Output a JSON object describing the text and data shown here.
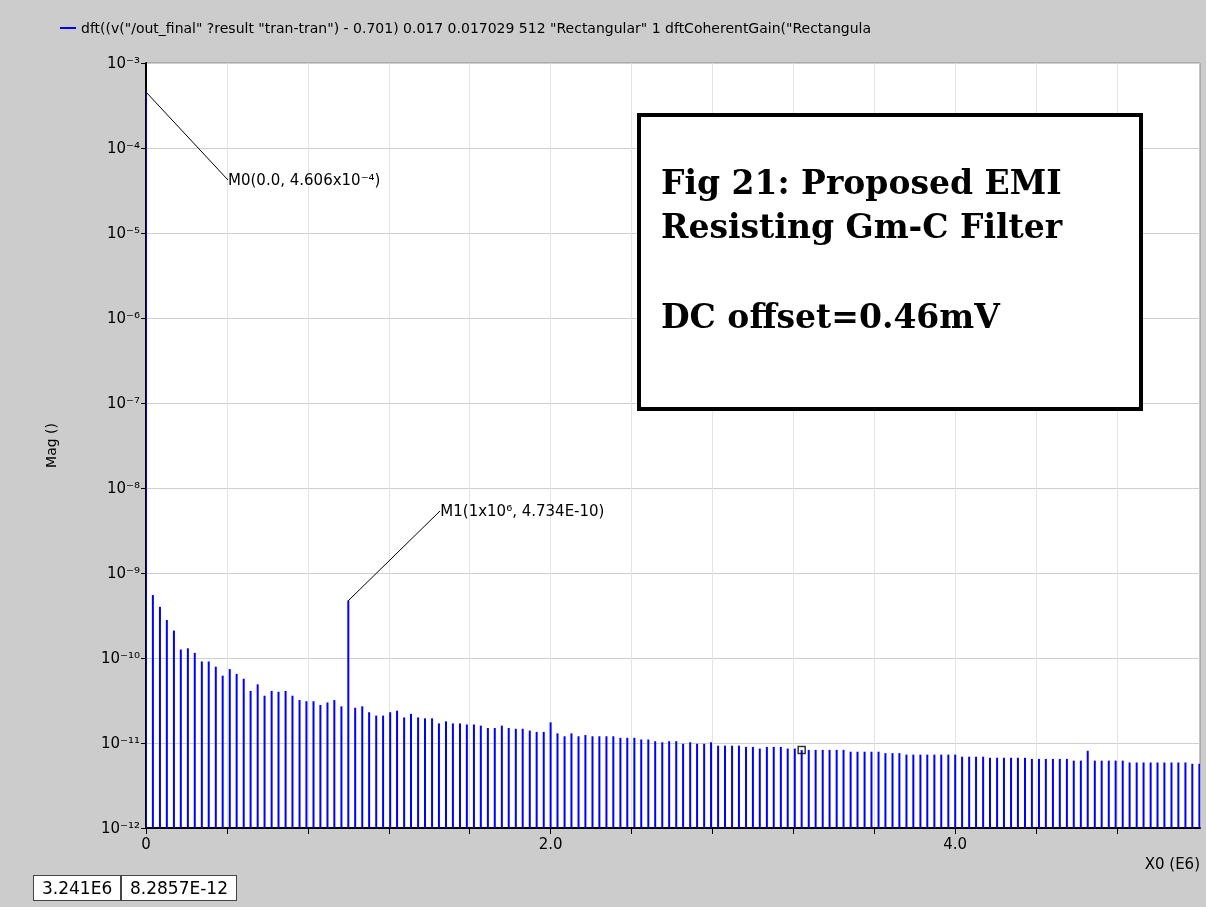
{
  "chart_data": {
    "type": "bar",
    "xlabel": "X0 (E6)",
    "ylabel": "Mag ()",
    "x": [
      0,
      0.034,
      0.069,
      0.103,
      0.138,
      0.172,
      0.207,
      0.241,
      0.276,
      0.31,
      0.345,
      0.379,
      0.414,
      0.448,
      0.483,
      0.517,
      0.552,
      0.586,
      0.621,
      0.655,
      0.69,
      0.724,
      0.759,
      0.793,
      0.828,
      0.862,
      0.897,
      0.931,
      0.966,
      1,
      1.034,
      1.069,
      1.103,
      1.138,
      1.172,
      1.207,
      1.241,
      1.276,
      1.31,
      1.345,
      1.379,
      1.414,
      1.448,
      1.483,
      1.517,
      1.552,
      1.586,
      1.621,
      1.655,
      1.69,
      1.724,
      1.759,
      1.793,
      1.828,
      1.862,
      1.897,
      1.931,
      1.966,
      2,
      2.034,
      2.069,
      2.103,
      2.138,
      2.172,
      2.207,
      2.241,
      2.276,
      2.31,
      2.345,
      2.379,
      2.414,
      2.448,
      2.483,
      2.517,
      2.552,
      2.586,
      2.621,
      2.655,
      2.69,
      2.724,
      2.759,
      2.793,
      2.828,
      2.862,
      2.897,
      2.931,
      2.966,
      3,
      3.034,
      3.069,
      3.103,
      3.138,
      3.172,
      3.207,
      3.241,
      3.276,
      3.31,
      3.345,
      3.379,
      3.414,
      3.448,
      3.483,
      3.517,
      3.552,
      3.586,
      3.621,
      3.655,
      3.69,
      3.724,
      3.759,
      3.793,
      3.828,
      3.862,
      3.897,
      3.931,
      3.966,
      4,
      4.034,
      4.069,
      4.103,
      4.138,
      4.172,
      4.207,
      4.241,
      4.276,
      4.31,
      4.345,
      4.379,
      4.414,
      4.448,
      4.483,
      4.517,
      4.552,
      4.586,
      4.621,
      4.655,
      4.69,
      4.724,
      4.759,
      4.793,
      4.828,
      4.862,
      4.897,
      4.931,
      4.966,
      5,
      5.034,
      5.069,
      5.103,
      5.138,
      5.172,
      5.207
    ],
    "series": [
      {
        "name": "dft((v(\"/out_final\" ?result \"tran-tran\") - 0.701) 0.017 0.017029 512 \"Rectangular\" 1 dftCoherentGain(\"Rectangula",
        "color": "#0000ff",
        "values": [
          0.0004606,
          5.5e-10,
          4e-10,
          2.8e-10,
          2.1e-10,
          1.26e-10,
          1.3e-10,
          1.15e-10,
          9.1e-11,
          9.1e-11,
          7.9e-11,
          6.2e-11,
          7.4e-11,
          6.5e-11,
          5.7e-11,
          4.1e-11,
          4.9e-11,
          3.6e-11,
          4.1e-11,
          4e-11,
          4.1e-11,
          3.6e-11,
          3.2e-11,
          3.1e-11,
          3.1e-11,
          2.8e-11,
          3e-11,
          3.2e-11,
          2.7e-11,
          4.734e-10,
          2.6e-11,
          2.7e-11,
          2.3e-11,
          2.1e-11,
          2.1e-11,
          2.3e-11,
          2.4e-11,
          2e-11,
          2.2e-11,
          2e-11,
          1.95e-11,
          1.95e-11,
          1.7e-11,
          1.8e-11,
          1.7e-11,
          1.7e-11,
          1.65e-11,
          1.65e-11,
          1.6e-11,
          1.5e-11,
          1.5e-11,
          1.6e-11,
          1.5e-11,
          1.47e-11,
          1.47e-11,
          1.4e-11,
          1.35e-11,
          1.35e-11,
          1.75e-11,
          1.3e-11,
          1.2e-11,
          1.3e-11,
          1.2e-11,
          1.24e-11,
          1.2e-11,
          1.2e-11,
          1.2e-11,
          1.2e-11,
          1.15e-11,
          1.15e-11,
          1.15e-11,
          1.1e-11,
          1.1e-11,
          1.05e-11,
          1.02e-11,
          1.05e-11,
          1.05e-11,
          9.8e-12,
          1.02e-11,
          9.8e-12,
          9.8e-12,
          1.02e-11,
          9.3e-12,
          9.3e-12,
          9.3e-12,
          9.3e-12,
          9e-12,
          9e-12,
          8.6e-12,
          9e-12,
          9e-12,
          9e-12,
          8.6e-12,
          8.6e-12,
          8.2857e-12,
          8.3e-12,
          8.3e-12,
          8.3e-12,
          8.3e-12,
          8.3e-12,
          8.3e-12,
          7.9e-12,
          7.9e-12,
          7.9e-12,
          7.9e-12,
          7.9e-12,
          7.6e-12,
          7.6e-12,
          7.6e-12,
          7.3e-12,
          7.3e-12,
          7.3e-12,
          7.3e-12,
          7.3e-12,
          7.3e-12,
          7.3e-12,
          7.3e-12,
          6.9e-12,
          6.9e-12,
          6.9e-12,
          6.9e-12,
          6.7e-12,
          6.7e-12,
          6.7e-12,
          6.7e-12,
          6.7e-12,
          6.7e-12,
          6.5e-12,
          6.5e-12,
          6.5e-12,
          6.5e-12,
          6.5e-12,
          6.5e-12,
          6.2e-12,
          6.2e-12,
          8.1e-12,
          6.2e-12,
          6.2e-12,
          6.2e-12,
          6.2e-12,
          6.2e-12,
          5.9e-12,
          5.9e-12,
          5.9e-12,
          5.9e-12,
          5.9e-12,
          5.9e-12,
          5.9e-12,
          5.9e-12,
          5.9e-12,
          5.7e-12,
          5.7e-12
        ]
      },
      {
        "type": "scatter",
        "marker": "square",
        "color": "#000000",
        "x": [
          3.241
        ],
        "values": [
          8.2857e-12
        ]
      }
    ],
    "log": "y",
    "xlim": [
      0,
      5.21
    ],
    "xticks": [
      0,
      {
        "value": 0.4,
        "label": null
      },
      {
        "value": 0.8,
        "label": null
      },
      {
        "value": 1.2,
        "label": null
      },
      {
        "value": 1.6,
        "label": null
      },
      {
        "value": 2,
        "label": "2.0"
      },
      {
        "value": 2.4,
        "label": null
      },
      {
        "value": 2.8,
        "label": null
      },
      {
        "value": 3.2,
        "label": null
      },
      {
        "value": 3.6,
        "label": null
      },
      {
        "value": 4,
        "label": "4.0"
      },
      {
        "value": 4.4,
        "label": null
      },
      {
        "value": 4.8,
        "label": null
      }
    ],
    "ylim": [
      1e-12,
      0.001
    ],
    "yticks": [
      {
        "value": 1e-12,
        "label": "10⁻¹²"
      },
      {
        "value": 1e-11,
        "label": "10⁻¹¹"
      },
      {
        "value": 1e-10,
        "label": "10⁻¹⁰"
      },
      {
        "value": 1e-09,
        "label": "10⁻⁹"
      },
      {
        "value": 1e-08,
        "label": "10⁻⁸"
      },
      {
        "value": 1e-07,
        "label": "10⁻⁷"
      },
      {
        "value": 1e-06,
        "label": "10⁻⁶"
      },
      {
        "value": 1e-05,
        "label": "10⁻⁵"
      },
      {
        "value": 0.0001,
        "label": "10⁻⁴"
      },
      {
        "value": 0.001,
        "label": "10⁻³"
      }
    ],
    "grid": true,
    "legend": "top left",
    "annotations": [
      {
        "text": "M0(0.0, 4.606x10⁻⁴)",
        "x": 0,
        "y": 0.0004606
      },
      {
        "text": "M1(1x10⁶, 4.734E-10)",
        "x": 1.0,
        "y": 4.734e-10
      },
      "Fig 21: Proposed EMI Resisting Gm-C Filter",
      "DC offset=0.46mV",
      "3.241E6",
      "8.2857E-12"
    ]
  }
}
